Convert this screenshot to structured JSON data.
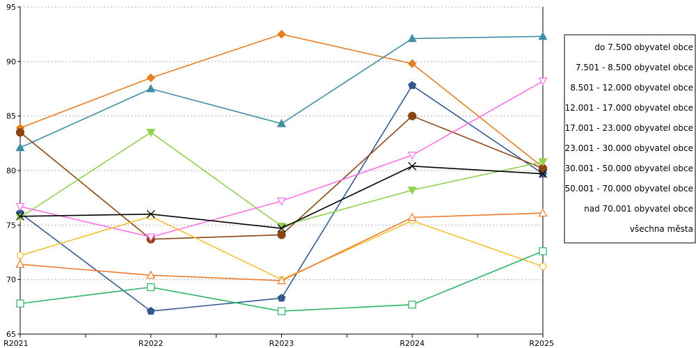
{
  "chart_data": {
    "type": "line",
    "title": "",
    "xlabel": "",
    "ylabel": "",
    "categories": [
      "R2021",
      "R2022",
      "R2023",
      "R2024",
      "R2025"
    ],
    "ylim": [
      65,
      95
    ],
    "yticks": [
      65,
      70,
      75,
      80,
      85,
      90,
      95
    ],
    "grid": "horizontal dotted",
    "legend_position": "right",
    "series": [
      {
        "name": "do 7.500 obyvatel obce",
        "color": "#31598F",
        "marker": "pentagon-filled",
        "values": [
          76.1,
          67.1,
          68.3,
          87.8,
          79.7
        ]
      },
      {
        "name": "7.501 - 8.500 obyvatel obce",
        "color": "#E67E22",
        "marker": "diamond-filled",
        "values": [
          83.9,
          88.5,
          92.5,
          89.8,
          80.3
        ]
      },
      {
        "name": "8.501 - 12.000 obyvatel obce",
        "color": "#3E8FA3",
        "marker": "triangle-filled",
        "values": [
          82.1,
          87.5,
          84.3,
          92.1,
          92.3
        ]
      },
      {
        "name": "12.001 - 17.000 obyvatel obce",
        "color": "#8A4513",
        "marker": "circle-filled",
        "values": [
          83.5,
          73.7,
          74.1,
          85.0,
          80.2
        ]
      },
      {
        "name": "17.001 - 23.000 obyvatel obce",
        "color": "#92D050",
        "marker": "triangle-down-filled",
        "values": [
          75.7,
          83.5,
          74.9,
          78.2,
          80.8
        ]
      },
      {
        "name": "23.001 - 30.000 obyvatel obce",
        "color": "#FF6FE6",
        "marker": "triangle-down-open",
        "values": [
          76.7,
          73.9,
          77.2,
          81.4,
          88.2
        ]
      },
      {
        "name": "30.001 - 50.000 obyvatel obce",
        "color": "#F5C030",
        "marker": "circle-open",
        "values": [
          72.2,
          75.8,
          70.0,
          75.4,
          71.2
        ]
      },
      {
        "name": "50.001 - 70.000 obyvatel obce",
        "color": "#F07A2A",
        "marker": "triangle-open",
        "values": [
          71.4,
          70.4,
          69.9,
          75.7,
          76.1
        ]
      },
      {
        "name": "nad 70.001 obyvatel obce",
        "color": "#28B463",
        "marker": "square-open",
        "values": [
          67.8,
          69.3,
          67.1,
          67.7,
          72.6
        ]
      },
      {
        "name": "všechna města",
        "color": "#000000",
        "marker": "x",
        "values": [
          75.8,
          76.0,
          74.7,
          80.4,
          79.7
        ]
      }
    ]
  }
}
